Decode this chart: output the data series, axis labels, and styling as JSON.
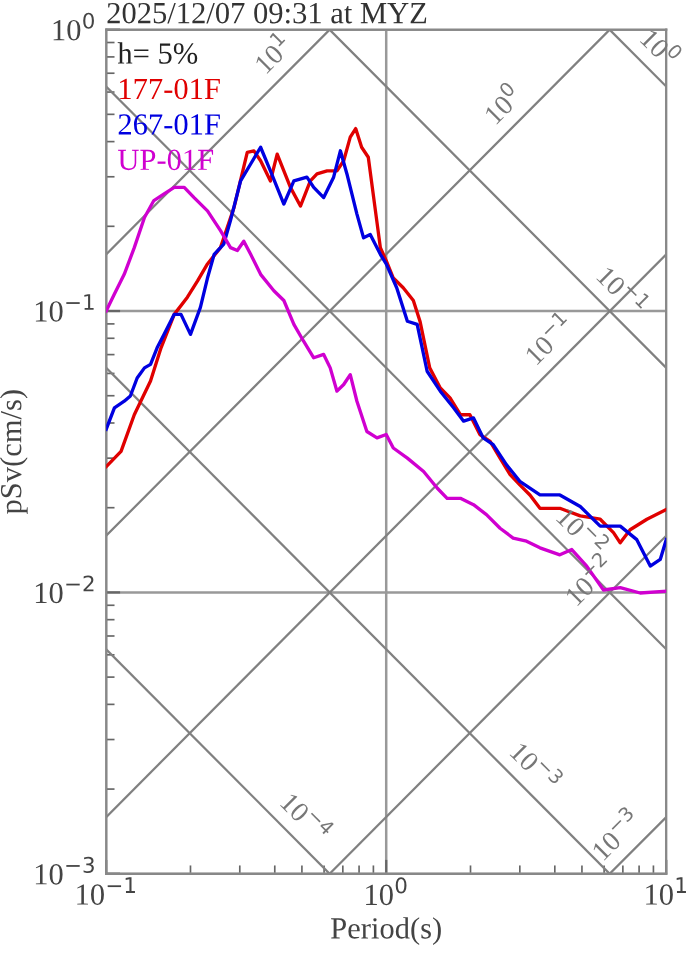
{
  "chart_data": {
    "type": "line",
    "title": "2025/12/07 09:31 at MYZ",
    "xlabel": "Period(s)",
    "ylabel": "pSv(cm/s)",
    "log": "xy",
    "grid": true,
    "legend": "top left",
    "xlim": [
      0.1,
      10
    ],
    "ylim": [
      0.001,
      1
    ],
    "xticks": [
      {
        "value": 0.1,
        "label": "10$^{−1}$"
      },
      {
        "value": 1,
        "label": "10$^{0}$"
      },
      {
        "value": 10,
        "label": "10$^{1}$"
      }
    ],
    "yticks": [
      {
        "value": 0.001,
        "label": "10$^{−3}$"
      },
      {
        "value": 0.01,
        "label": "10$^{−2}$"
      },
      {
        "value": 0.1,
        "label": "10$^{−1}$"
      },
      {
        "value": 1,
        "label": "10$^{0}$"
      }
    ],
    "annotations": [
      "h= 5%"
    ],
    "series": [
      {
        "name": "177-01F",
        "color": "#e00000",
        "x": [
          0.1,
          0.113,
          0.126,
          0.144,
          0.157,
          0.175,
          0.195,
          0.212,
          0.23,
          0.256,
          0.286,
          0.319,
          0.337,
          0.356,
          0.386,
          0.408,
          0.431,
          0.455,
          0.494,
          0.536,
          0.566,
          0.615,
          0.667,
          0.705,
          0.744,
          0.778,
          0.817,
          0.863,
          0.912,
          0.953,
          1.0,
          1.06,
          1.15,
          1.25,
          1.32,
          1.43,
          1.56,
          1.69,
          1.84,
          1.99,
          2.16,
          2.35,
          2.55,
          2.77,
          3.0,
          3.26,
          3.54,
          4.17,
          4.93,
          5.81,
          6.48,
          6.85,
          7.43,
          8.53,
          10
        ],
        "values": [
          0.028,
          0.0317,
          0.0428,
          0.0564,
          0.074,
          0.0973,
          0.112,
          0.128,
          0.147,
          0.168,
          0.233,
          0.366,
          0.371,
          0.342,
          0.29,
          0.361,
          0.315,
          0.275,
          0.236,
          0.29,
          0.307,
          0.315,
          0.315,
          0.342,
          0.415,
          0.445,
          0.382,
          0.352,
          0.233,
          0.168,
          0.151,
          0.131,
          0.121,
          0.109,
          0.092,
          0.0628,
          0.0533,
          0.0491,
          0.0428,
          0.0428,
          0.0364,
          0.0344,
          0.03,
          0.0262,
          0.0241,
          0.0222,
          0.0199,
          0.0199,
          0.0187,
          0.0182,
          0.0163,
          0.015,
          0.0167,
          0.0182,
          0.0197
        ]
      },
      {
        "name": "267-01F",
        "color": "#0000e0",
        "x": [
          0.1,
          0.107,
          0.116,
          0.122,
          0.129,
          0.137,
          0.144,
          0.152,
          0.161,
          0.175,
          0.185,
          0.2,
          0.217,
          0.23,
          0.243,
          0.263,
          0.278,
          0.302,
          0.328,
          0.356,
          0.386,
          0.431,
          0.468,
          0.521,
          0.551,
          0.598,
          0.649,
          0.686,
          0.724,
          0.786,
          0.83,
          0.877,
          0.953,
          1.0,
          1.09,
          1.19,
          1.29,
          1.4,
          1.56,
          1.74,
          1.89,
          2.05,
          2.22,
          2.41,
          2.69,
          3.0,
          3.54,
          4.17,
          4.93,
          5.81,
          6.85,
          7.85,
          8.77,
          9.52,
          10
        ],
        "values": [
          0.038,
          0.0453,
          0.0478,
          0.0499,
          0.0578,
          0.0628,
          0.0646,
          0.074,
          0.0826,
          0.0973,
          0.0973,
          0.0826,
          0.103,
          0.131,
          0.159,
          0.173,
          0.21,
          0.29,
          0.333,
          0.382,
          0.315,
          0.24,
          0.29,
          0.299,
          0.275,
          0.253,
          0.299,
          0.371,
          0.307,
          0.221,
          0.182,
          0.187,
          0.159,
          0.147,
          0.121,
          0.092,
          0.0896,
          0.0611,
          0.0519,
          0.0453,
          0.0406,
          0.0417,
          0.0354,
          0.0335,
          0.0284,
          0.0248,
          0.0222,
          0.0222,
          0.0202,
          0.0172,
          0.0172,
          0.0154,
          0.0124,
          0.0131,
          0.0154
        ]
      },
      {
        "name": "UP-01F",
        "color": "#d000d0",
        "x": [
          0.1,
          0.107,
          0.116,
          0.126,
          0.137,
          0.148,
          0.161,
          0.175,
          0.19,
          0.206,
          0.23,
          0.256,
          0.278,
          0.294,
          0.31,
          0.328,
          0.356,
          0.397,
          0.431,
          0.468,
          0.507,
          0.551,
          0.598,
          0.631,
          0.667,
          0.705,
          0.744,
          0.786,
          0.853,
          0.927,
          1.0,
          1.06,
          1.19,
          1.36,
          1.52,
          1.65,
          1.84,
          2.05,
          2.28,
          2.55,
          2.84,
          3.17,
          3.54,
          4.17,
          4.6,
          5.2,
          5.97,
          6.85,
          8.07,
          10
        ],
        "values": [
          0.1,
          0.115,
          0.135,
          0.168,
          0.215,
          0.247,
          0.261,
          0.275,
          0.275,
          0.253,
          0.227,
          0.193,
          0.168,
          0.164,
          0.177,
          0.159,
          0.135,
          0.118,
          0.109,
          0.0896,
          0.0781,
          0.0682,
          0.0701,
          0.0628,
          0.0519,
          0.0548,
          0.0594,
          0.0478,
          0.0373,
          0.0354,
          0.0364,
          0.0326,
          0.03,
          0.0269,
          0.0235,
          0.0216,
          0.0216,
          0.0205,
          0.0189,
          0.0169,
          0.0156,
          0.0152,
          0.0144,
          0.0136,
          0.0142,
          0.0124,
          0.0102,
          0.0104,
          0.00995,
          0.0101
        ]
      },
      {
        "name": "10$^{1}$",
        "color": "#808080",
        "x": [
          0.1,
          0.628
        ],
        "values": [
          0.159,
          1
        ]
      },
      {
        "name": "10$^{0}$",
        "color": "#808080",
        "x": [
          0.1,
          6.28
        ],
        "values": [
          0.0159,
          1
        ]
      },
      {
        "name": "10$^{−1}$",
        "color": "#808080",
        "x": [
          0.1,
          10
        ],
        "values": [
          0.00159,
          0.159
        ]
      },
      {
        "name": "10$^{−2}$",
        "color": "#808080",
        "x": [
          0.628,
          10
        ],
        "values": [
          0.001,
          0.0159
        ]
      },
      {
        "name": "10$^{−3}$",
        "color": "#808080",
        "x": [
          10,
          6.28
        ],
        "values": [
          0.00159,
          0.001
        ]
      },
      {
        "name": "10$^{0}$",
        "color": "#808080",
        "x": [
          6.28,
          10
        ],
        "values": [
          1,
          0.628
        ]
      },
      {
        "name": "10$^{−1}$",
        "color": "#808080",
        "x": [
          0.628,
          10
        ],
        "values": [
          1,
          0.0628
        ]
      },
      {
        "name": "10$^{−2}$",
        "color": "#808080",
        "x": [
          0.1,
          10
        ],
        "values": [
          0.628,
          0.00628
        ]
      },
      {
        "name": "10$^{−3}$",
        "color": "#808080",
        "x": [
          0.1,
          6.28
        ],
        "values": [
          0.0628,
          0.001
        ]
      },
      {
        "name": "10$^{−4}$",
        "color": "#808080",
        "x": [
          0.1,
          0.628
        ],
        "values": [
          0.00628,
          0.001
        ]
      }
    ]
  }
}
